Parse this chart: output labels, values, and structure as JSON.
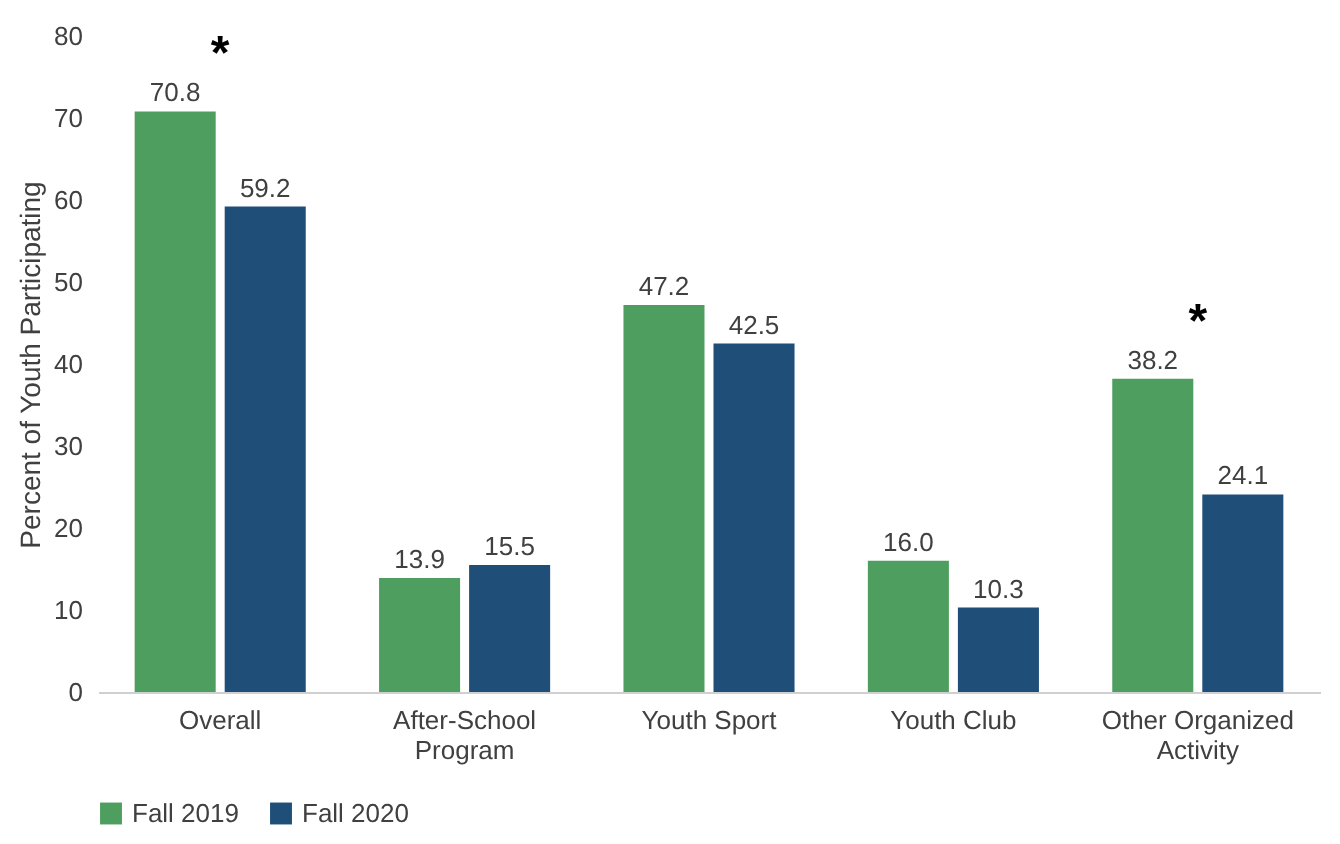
{
  "chart_data": {
    "type": "bar",
    "ylabel": "Percent of Youth Participating",
    "categories": [
      "Overall",
      "After-School Program",
      "Youth Sport",
      "Youth Club",
      "Other Organized Activity"
    ],
    "series": [
      {
        "name": "Fall 2019",
        "color": "#4e9f5f",
        "values": [
          70.8,
          13.9,
          47.2,
          16.0,
          38.2
        ],
        "value_labels": [
          "70.8",
          "13.9",
          "47.2",
          "16.0",
          "38.2"
        ]
      },
      {
        "name": "Fall 2020",
        "color": "#1f4e79",
        "values": [
          59.2,
          15.5,
          42.5,
          10.3,
          24.1
        ],
        "value_labels": [
          "59.2",
          "15.5",
          "42.5",
          "10.3",
          "24.1"
        ]
      }
    ],
    "ylim": [
      0,
      80
    ],
    "yticks": [
      0,
      10,
      20,
      30,
      40,
      50,
      60,
      70,
      80
    ],
    "grid": false,
    "legend": "bottom",
    "annotations": [
      {
        "text": "*",
        "x": "Overall",
        "y": 70.8
      },
      {
        "text": "*",
        "x": "Other Organized Activity",
        "y": 38.2
      }
    ]
  }
}
